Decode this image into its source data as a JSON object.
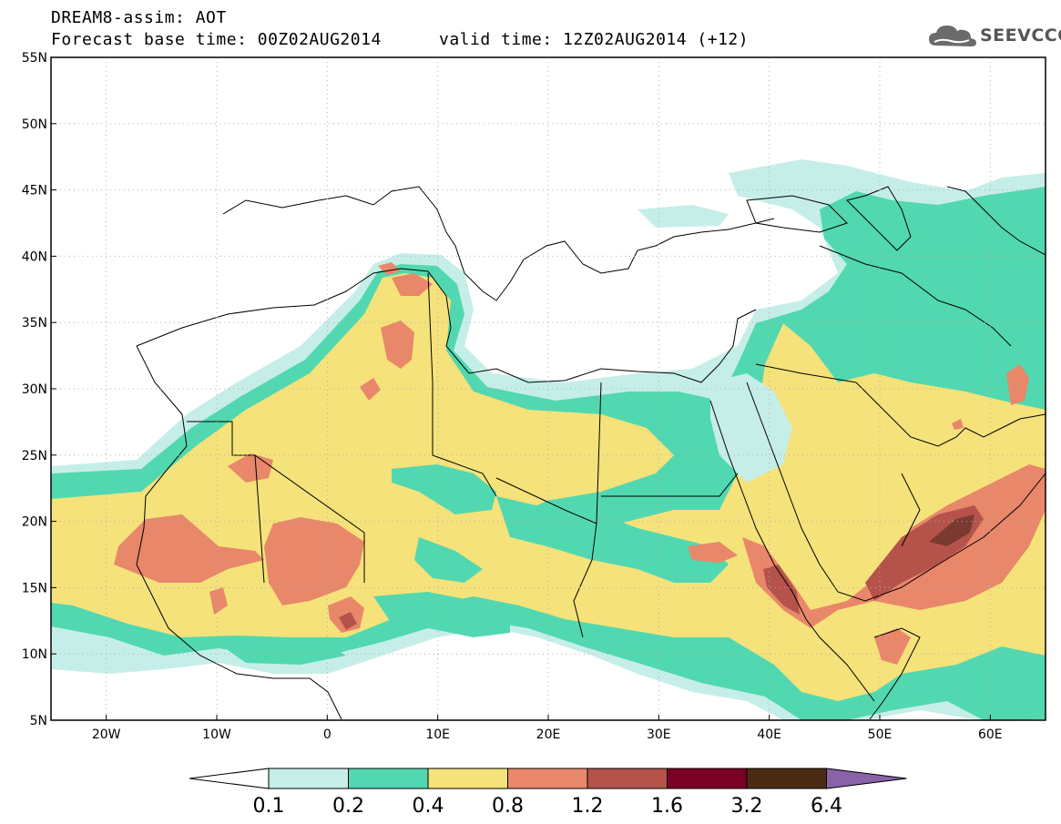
{
  "header": {
    "title": "DREAM8-assim: AOT",
    "base_time": "Forecast base time: 00Z02AUG2014",
    "valid_time": "valid time: 12Z02AUG2014 (+12)"
  },
  "logo": {
    "text": "SEEVCCC",
    "icon": "cloud-icon"
  },
  "map": {
    "region": "North Africa, Middle East, Mediterranean",
    "lon_range": [
      -25,
      65
    ],
    "lat_range": [
      5,
      55
    ],
    "lat_ticks": [
      "55N",
      "50N",
      "45N",
      "40N",
      "35N",
      "30N",
      "25N",
      "20N",
      "15N",
      "10N",
      "5N"
    ],
    "lon_ticks": [
      "20W",
      "10W",
      "0",
      "10E",
      "20E",
      "30E",
      "40E",
      "50E",
      "60E"
    ],
    "grid": "dotted"
  },
  "colorbar": {
    "labels": [
      "0.1",
      "0.2",
      "0.4",
      "0.8",
      "1.2",
      "1.6",
      "3.2",
      "6.4"
    ],
    "colors": [
      "#c6eee8",
      "#52d8b0",
      "#f5e27a",
      "#e8876a",
      "#b5534a",
      "#7a0026",
      "#4a2c14",
      "#8a62a8"
    ],
    "extend": "both"
  }
}
